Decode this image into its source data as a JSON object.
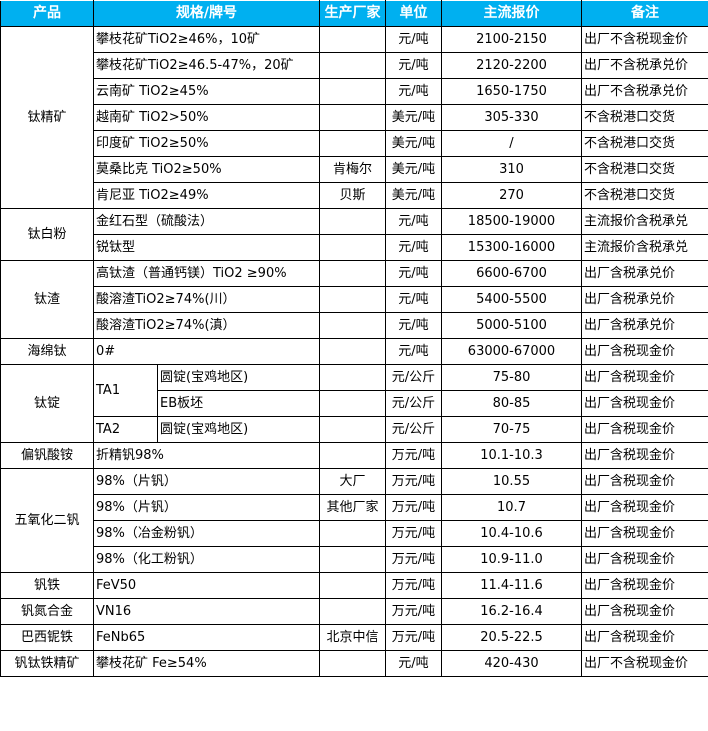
{
  "header": [
    "产品",
    "规格/牌号",
    "生产厂家",
    "单位",
    "主流报价",
    "备注"
  ],
  "groups": [
    {
      "product": "钛精矿",
      "rows": [
        {
          "spec": "攀枝花矿TiO2≥46%，10矿",
          "maker": "",
          "unit": "元/吨",
          "price": "2100-2150",
          "note": "出厂不含税现金价"
        },
        {
          "spec": "攀枝花矿TiO2≥46.5-47%，20矿",
          "maker": "",
          "unit": "元/吨",
          "price": "2120-2200",
          "note": "出厂不含税承兑价"
        },
        {
          "spec": "云南矿 TiO2≥45%",
          "maker": "",
          "unit": "元/吨",
          "price": "1650-1750",
          "note": "出厂不含税承兑价"
        },
        {
          "spec": "越南矿 TiO2>50%",
          "maker": "",
          "unit": "美元/吨",
          "price": "305-330",
          "note": "不含税港口交货"
        },
        {
          "spec": "印度矿 TiO2≥50%",
          "maker": "",
          "unit": "美元/吨",
          "price": "/",
          "note": "不含税港口交货"
        },
        {
          "spec": "莫桑比克 TiO2≥50%",
          "maker": "肯梅尔",
          "unit": "美元/吨",
          "price": "310",
          "note": "不含税港口交货"
        },
        {
          "spec": "肯尼亚 TiO2≥49%",
          "maker": "贝斯",
          "unit": "美元/吨",
          "price": "270",
          "note": "不含税港口交货"
        }
      ]
    },
    {
      "product": "钛白粉",
      "rows": [
        {
          "spec": "金红石型（硫酸法）",
          "maker": "",
          "unit": "元/吨",
          "price": "18500-19000",
          "note": "主流报价含税承兑"
        },
        {
          "spec": "锐钛型",
          "maker": "",
          "unit": "元/吨",
          "price": "15300-16000",
          "note": "主流报价含税承兑"
        }
      ]
    },
    {
      "product": "钛渣",
      "rows": [
        {
          "spec": "高钛渣（普通钙镁）TiO2 ≥90%",
          "maker": "",
          "unit": "元/吨",
          "price": "6600-6700",
          "note": "出厂含税承兑价"
        },
        {
          "spec": "酸溶渣TiO2≥74%(川）",
          "maker": "",
          "unit": "元/吨",
          "price": "5400-5500",
          "note": "出厂含税承兑价"
        },
        {
          "spec": "酸溶渣TiO2≥74%(滇）",
          "maker": "",
          "unit": "元/吨",
          "price": "5000-5100",
          "note": "出厂含税承兑价"
        }
      ]
    },
    {
      "product": "海绵钛",
      "rows": [
        {
          "spec": "0#",
          "maker": "",
          "unit": "元/吨",
          "price": "63000-67000",
          "note": "出厂含税现金价"
        }
      ]
    },
    {
      "product": "钛锭",
      "rows": [
        {
          "grade": "TA1",
          "grade_span": 2,
          "spec": "圆锭(宝鸡地区)",
          "maker": "",
          "unit": "元/公斤",
          "price": "75-80",
          "note": "出厂含税现金价"
        },
        {
          "spec": "EB板坯",
          "maker": "",
          "unit": "元/公斤",
          "price": "80-85",
          "note": "出厂含税现金价"
        },
        {
          "grade": "TA2",
          "grade_span": 1,
          "spec": "圆锭(宝鸡地区)",
          "maker": "",
          "unit": "元/公斤",
          "price": "70-75",
          "note": "出厂含税现金价"
        }
      ]
    },
    {
      "product": "偏钒酸铵",
      "rows": [
        {
          "spec": "折精钒98%",
          "maker": "",
          "unit": "万元/吨",
          "price": "10.1-10.3",
          "note": "出厂含税现金价"
        }
      ]
    },
    {
      "product": "五氧化二钒",
      "rows": [
        {
          "spec": "98%（片钒）",
          "maker": "大厂",
          "unit": "万元/吨",
          "price": "10.55",
          "note": "出厂含税现金价"
        },
        {
          "spec": "98%（片钒）",
          "maker": "其他厂家",
          "unit": "万元/吨",
          "price": "10.7",
          "note": "出厂含税现金价"
        },
        {
          "spec": "98%（冶金粉钒）",
          "maker": "",
          "unit": "万元/吨",
          "price": "10.4-10.6",
          "note": "出厂含税现金价"
        },
        {
          "spec": "98%（化工粉钒）",
          "maker": "",
          "unit": "万元/吨",
          "price": "10.9-11.0",
          "note": "出厂含税现金价"
        }
      ]
    },
    {
      "product": "钒铁",
      "rows": [
        {
          "spec": "FeV50",
          "maker": "",
          "unit": "万元/吨",
          "price": "11.4-11.6",
          "note": "出厂含税现金价"
        }
      ]
    },
    {
      "product": "钒氮合金",
      "rows": [
        {
          "spec": "VN16",
          "maker": "",
          "unit": "万元/吨",
          "price": "16.2-16.4",
          "note": "出厂含税现金价"
        }
      ]
    },
    {
      "product": "巴西铌铁",
      "rows": [
        {
          "spec": "FeNb65",
          "maker": "北京中信",
          "unit": "万元/吨",
          "price": "20.5-22.5",
          "note": "出厂含税现金价"
        }
      ]
    },
    {
      "product": "钒钛铁精矿",
      "rows": [
        {
          "spec": "攀枝花矿 Fe≥54%",
          "maker": "",
          "unit": "元/吨",
          "price": "420-430",
          "note": "出厂不含税现金价"
        }
      ]
    }
  ]
}
